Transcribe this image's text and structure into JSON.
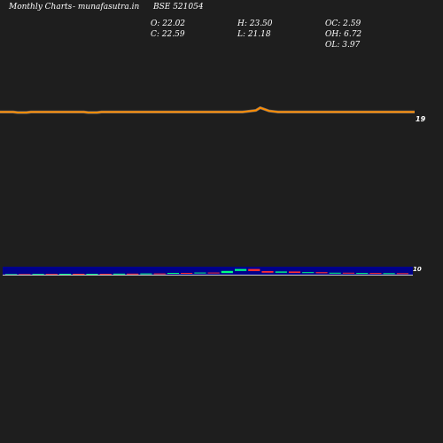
{
  "header": {
    "site_left": "Monthly Charts",
    "site_right": "- munafasutra.in",
    "symbol": "BSE 521054",
    "open": "O: 22.02",
    "close": "C: 22.59",
    "high": "H: 23.50",
    "low": "L: 21.18",
    "oc": "OC: 2.59",
    "oh": "OH: 6.72",
    "ol": "OL: 3.97"
  },
  "colors": {
    "background": "#1e1e1e",
    "price_line": "#ff8c00",
    "volume_panel": "#00008b",
    "up_bar": "#00ff7f",
    "down_bar": "#ff3030",
    "text": "#ffffff"
  },
  "chart_data": {
    "type": "line",
    "price_axis_label": "19",
    "volume_axis_label": "10",
    "price": [
      20.6,
      20.6,
      20.6,
      20.6,
      20.5,
      20.5,
      20.5,
      20.6,
      20.6,
      20.6,
      20.6,
      20.6,
      20.6,
      20.6,
      20.6,
      20.6,
      20.6,
      20.6,
      20.6,
      20.6,
      20.5,
      20.5,
      20.5,
      20.6,
      20.6,
      20.6,
      20.6,
      20.6,
      20.6,
      20.6,
      20.6,
      20.6,
      20.6,
      20.6,
      20.6,
      20.6,
      20.6,
      20.6,
      20.6,
      20.6,
      20.6,
      20.6,
      20.6,
      20.6,
      20.6,
      20.6,
      20.6,
      20.6,
      20.6,
      20.6,
      20.6,
      20.6,
      20.6,
      20.6,
      20.6,
      20.6,
      20.7,
      20.8,
      20.9,
      21.4,
      21.1,
      20.8,
      20.7,
      20.6,
      20.6,
      20.6,
      20.6,
      20.6,
      20.6,
      20.6,
      20.6,
      20.6,
      20.6,
      20.6,
      20.6,
      20.6,
      20.6,
      20.6,
      20.6,
      20.6,
      20.6,
      20.6,
      20.6,
      20.6,
      20.6,
      20.6,
      20.6,
      20.6,
      20.6,
      20.6,
      20.6,
      20.6,
      20.6,
      20.6,
      20.6
    ],
    "candles": [
      {
        "o": 1.0,
        "c": 1.6
      },
      {
        "o": 1.6,
        "c": 1.2
      },
      {
        "o": 1.2,
        "c": 1.8
      },
      {
        "o": 1.8,
        "c": 1.4
      },
      {
        "o": 1.4,
        "c": 2.0
      },
      {
        "o": 2.0,
        "c": 1.3
      },
      {
        "o": 1.3,
        "c": 1.9
      },
      {
        "o": 1.9,
        "c": 1.5
      },
      {
        "o": 1.5,
        "c": 2.2
      },
      {
        "o": 2.2,
        "c": 1.6
      },
      {
        "o": 1.6,
        "c": 2.4
      },
      {
        "o": 2.4,
        "c": 2.0
      },
      {
        "o": 2.0,
        "c": 3.0
      },
      {
        "o": 3.0,
        "c": 2.6
      },
      {
        "o": 2.6,
        "c": 3.4
      },
      {
        "o": 3.4,
        "c": 2.8
      },
      {
        "o": 2.8,
        "c": 5.2
      },
      {
        "o": 5.2,
        "c": 7.4
      },
      {
        "o": 7.4,
        "c": 5.0
      },
      {
        "o": 5.0,
        "c": 3.2
      },
      {
        "o": 3.2,
        "c": 4.6
      },
      {
        "o": 4.6,
        "c": 3.0
      },
      {
        "o": 3.0,
        "c": 3.8
      },
      {
        "o": 3.8,
        "c": 2.6
      },
      {
        "o": 2.6,
        "c": 3.2
      },
      {
        "o": 3.2,
        "c": 2.4
      },
      {
        "o": 2.4,
        "c": 2.9
      },
      {
        "o": 2.9,
        "c": 2.2
      },
      {
        "o": 2.2,
        "c": 2.7
      },
      {
        "o": 2.7,
        "c": 2.0
      }
    ]
  }
}
